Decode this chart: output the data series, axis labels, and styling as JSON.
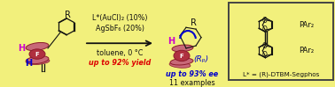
{
  "background_color": "#f2f07c",
  "box_background": "#f2f07c",
  "box_border_color": "#444444",
  "figsize": [
    3.78,
    0.99
  ],
  "dpi": 100,
  "reagents_line1": "L*(AuCl)₂ (10%)",
  "reagents_line2": "AgSbF₆ (20%)",
  "conditions_line1": "toluene, 0 °C",
  "conditions_line2": "up to 92% yield",
  "product_line1": "up to 93% ee",
  "product_line2": "11 examples",
  "product_stereo": "(Rₚ)",
  "ligand_label": "L* = (R)-DTBM-Segphos",
  "text_color_black": "#111111",
  "text_color_red": "#dd0000",
  "text_color_blue": "#0000cc",
  "text_color_magenta": "#cc00cc",
  "arrow_color": "#111111",
  "ferrocene_color": "#b83040",
  "ferrocene_dark": "#7a1020",
  "cp_fill": "#c86878",
  "cp_edge": "#8b1a2a",
  "fe_fill": "#b03040",
  "font_size_reagents": 5.8,
  "font_size_conditions": 5.8,
  "font_size_product": 5.8,
  "font_size_ligand": 5.2
}
